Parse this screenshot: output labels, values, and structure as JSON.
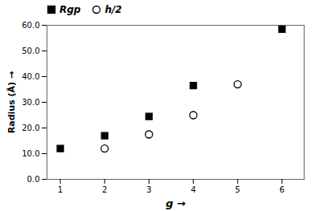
{
  "chart_data": {
    "type": "scatter",
    "xlabel": "g",
    "ylabel": "Radius (Å)",
    "series": [
      {
        "name": "Rgp",
        "color": "black",
        "marker": "square",
        "x": [
          1,
          2,
          3,
          4,
          6
        ],
        "values": [
          12.0,
          17.0,
          24.5,
          36.5,
          58.5
        ]
      },
      {
        "name": "h/2",
        "color": "black",
        "marker": "circle",
        "x": [
          2,
          3,
          4,
          5
        ],
        "values": [
          12.0,
          17.5,
          25.0,
          37.0
        ]
      }
    ],
    "xlim": [
      0.7,
      6.5
    ],
    "xticks": [
      1,
      2,
      3,
      4,
      5,
      6
    ],
    "ylim": [
      0.0,
      60.0
    ],
    "yticks": [
      {
        "value": 0.0,
        "label": "0.0"
      },
      {
        "value": 10.0,
        "label": "10.0"
      },
      {
        "value": 20.0,
        "label": "20.0"
      },
      {
        "value": 30.0,
        "label": "30.0"
      },
      {
        "value": 40.0,
        "label": "40.0"
      },
      {
        "value": 50.0,
        "label": "50.0"
      },
      {
        "value": 60.0,
        "label": "60.0"
      }
    ],
    "grid": false,
    "legend": "upper left"
  }
}
